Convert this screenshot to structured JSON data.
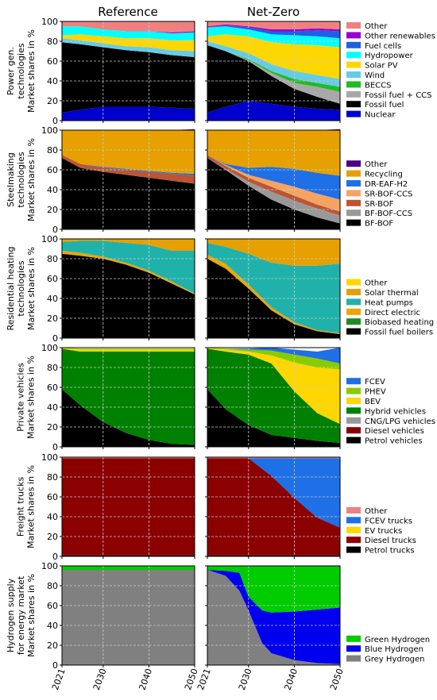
{
  "columns": [
    "Reference",
    "Net-Zero"
  ],
  "x_ticks": [
    2021,
    2030,
    2040,
    2050
  ],
  "y_ticks": [
    0,
    20,
    40,
    60,
    80,
    100
  ],
  "chart_data": [
    {
      "type": "area",
      "ylabel": [
        "Power gen.",
        "technologies",
        "Market shares in %"
      ],
      "ylim": [
        0,
        100
      ],
      "x": [
        2021,
        2025,
        2030,
        2035,
        2040,
        2045,
        2050
      ],
      "legend": [
        "Other",
        "Other renewables",
        "Fuel cells",
        "Hydropower",
        "Solar PV",
        "Wind",
        "BECCS",
        "Fossil fuel + CCS",
        "Fossil fuel",
        "Nuclear"
      ],
      "series": [
        {
          "name": "Nuclear",
          "color": "#0000cc",
          "reference": [
            8,
            11,
            14,
            14,
            14,
            13,
            12
          ],
          "netzero": [
            8,
            14,
            20,
            17,
            14,
            12,
            11
          ]
        },
        {
          "name": "Fossil fuel",
          "color": "#000000",
          "reference": [
            71,
            66,
            60,
            57,
            55,
            53,
            52
          ],
          "netzero": [
            68,
            56,
            40,
            28,
            18,
            12,
            6
          ]
        },
        {
          "name": "Fossil fuel + CCS",
          "color": "#a8a8a8",
          "reference": [
            0,
            0,
            0,
            0,
            0,
            0,
            0
          ],
          "netzero": [
            0,
            0,
            1,
            3,
            6,
            10,
            12
          ]
        },
        {
          "name": "BECCS",
          "color": "#22bb22",
          "reference": [
            0,
            0,
            0,
            0,
            0,
            0,
            0
          ],
          "netzero": [
            0,
            0,
            1,
            2,
            4,
            4,
            5
          ]
        },
        {
          "name": "Wind",
          "color": "#66cce6",
          "reference": [
            4,
            4,
            4,
            4,
            5,
            5,
            6
          ],
          "netzero": [
            4,
            5,
            6,
            7,
            8,
            8,
            8
          ]
        },
        {
          "name": "Solar PV",
          "color": "#ffd700",
          "reference": [
            3,
            6,
            7,
            8,
            9,
            10,
            11
          ],
          "netzero": [
            5,
            12,
            17,
            22,
            27,
            30,
            32
          ]
        },
        {
          "name": "Hydropower",
          "color": "#00ffff",
          "reference": [
            9,
            8,
            7,
            7,
            7,
            7,
            8
          ],
          "netzero": [
            9,
            8,
            7,
            8,
            9,
            9,
            9
          ]
        },
        {
          "name": "Fuel cells",
          "color": "#1f5fe6",
          "reference": [
            0,
            0,
            0,
            0,
            0,
            0,
            0
          ],
          "netzero": [
            0,
            1,
            2,
            3,
            4,
            6,
            7
          ]
        },
        {
          "name": "Other renewables",
          "color": "#9900cc",
          "reference": [
            0,
            0,
            0,
            0,
            0,
            1,
            1
          ],
          "netzero": [
            1,
            1,
            1,
            2,
            2,
            2,
            2
          ]
        },
        {
          "name": "Other",
          "color": "#f08080",
          "reference": [
            5,
            5,
            8,
            10,
            10,
            11,
            10
          ],
          "netzero": [
            5,
            3,
            5,
            8,
            8,
            7,
            8
          ]
        }
      ]
    },
    {
      "type": "area",
      "ylabel": [
        "Steelmaking",
        "technologies",
        "Market shares in %"
      ],
      "ylim": [
        0,
        100
      ],
      "x": [
        2021,
        2025,
        2030,
        2035,
        2040,
        2045,
        2050
      ],
      "legend": [
        "Other",
        "Recycling",
        "DR-EAF-H2",
        "SR-BOF-CCS",
        "SR-BOF",
        "BF-BOF-CCS",
        "BF-BOF"
      ],
      "series": [
        {
          "name": "BF-BOF",
          "color": "#000000",
          "reference": [
            72,
            62,
            58,
            55,
            52,
            49,
            46
          ],
          "netzero": [
            72,
            60,
            44,
            30,
            20,
            12,
            6
          ]
        },
        {
          "name": "BF-BOF-CCS",
          "color": "#999999",
          "reference": [
            0,
            0,
            0,
            0,
            0,
            0,
            0
          ],
          "netzero": [
            0,
            1,
            4,
            8,
            9,
            9,
            8
          ]
        },
        {
          "name": "SR-BOF",
          "color": "#bb5533",
          "reference": [
            3,
            4,
            4,
            5,
            6,
            7,
            8
          ],
          "netzero": [
            3,
            3,
            4,
            5,
            5,
            4,
            4
          ]
        },
        {
          "name": "SR-BOF-CCS",
          "color": "#f4a460",
          "reference": [
            0,
            0,
            0,
            0,
            0,
            0,
            0
          ],
          "netzero": [
            0,
            1,
            3,
            6,
            9,
            11,
            12
          ]
        },
        {
          "name": "DR-EAF-H2",
          "color": "#1f6fe6",
          "reference": [
            0,
            0,
            1,
            1,
            1,
            1,
            2
          ],
          "netzero": [
            0,
            1,
            7,
            14,
            18,
            21,
            24
          ]
        },
        {
          "name": "Recycling",
          "color": "#e6a000",
          "reference": [
            25,
            34,
            37,
            39,
            41,
            43,
            44
          ],
          "netzero": [
            25,
            34,
            38,
            37,
            39,
            43,
            46
          ]
        },
        {
          "name": "Other",
          "color": "#4b0082",
          "reference": [
            0,
            0,
            0,
            0,
            0,
            0,
            1
          ],
          "netzero": [
            0,
            0,
            0,
            0,
            0,
            0,
            1
          ]
        }
      ]
    },
    {
      "type": "area",
      "ylabel": [
        "Residential heating",
        "technologies",
        "Market shares in %"
      ],
      "ylim": [
        0,
        100
      ],
      "x": [
        2021,
        2025,
        2030,
        2035,
        2040,
        2045,
        2050
      ],
      "legend": [
        "Other",
        "Solar thermal",
        "Heat pumps",
        "Direct electric",
        "Biobased heating",
        "Fossil fuel boilers"
      ],
      "series": [
        {
          "name": "Fossil fuel boilers",
          "color": "#000000",
          "reference": [
            85,
            83,
            80,
            74,
            66,
            55,
            44
          ],
          "netzero": [
            80,
            70,
            50,
            28,
            14,
            7,
            4
          ]
        },
        {
          "name": "Biobased heating",
          "color": "#228b22",
          "reference": [
            0,
            0,
            0,
            0,
            0,
            0,
            0
          ],
          "netzero": [
            0,
            0,
            0,
            0,
            0,
            0,
            0
          ]
        },
        {
          "name": "Direct electric",
          "color": "#f0a500",
          "reference": [
            3,
            3,
            2,
            2,
            2,
            2,
            1
          ],
          "netzero": [
            4,
            5,
            4,
            3,
            2,
            1,
            1
          ]
        },
        {
          "name": "Heat pumps",
          "color": "#20b2aa",
          "reference": [
            9,
            12,
            16,
            20,
            26,
            31,
            43
          ],
          "netzero": [
            12,
            17,
            31,
            45,
            57,
            65,
            70
          ]
        },
        {
          "name": "Solar thermal",
          "color": "#e6a000",
          "reference": [
            3,
            2,
            2,
            4,
            6,
            12,
            12
          ],
          "netzero": [
            4,
            8,
            15,
            24,
            27,
            27,
            25
          ]
        },
        {
          "name": "Other",
          "color": "#ffd700",
          "reference": [
            0,
            0,
            0,
            0,
            0,
            0,
            0
          ],
          "netzero": [
            0,
            0,
            0,
            0,
            0,
            0,
            0
          ]
        }
      ]
    },
    {
      "type": "area",
      "ylabel": [
        "Private vehicles",
        "Market shares in %"
      ],
      "ylim": [
        0,
        100
      ],
      "x": [
        2021,
        2025,
        2030,
        2035,
        2040,
        2045,
        2050
      ],
      "legend": [
        "FCEV",
        "PHEV",
        "BEV",
        "Hybrid vehicles",
        "CNG/LPG vehicles",
        "Diesel vehicles",
        "Petrol vehicles"
      ],
      "series": [
        {
          "name": "Petrol vehicles",
          "color": "#000000",
          "reference": [
            58,
            42,
            25,
            14,
            7,
            3,
            2
          ],
          "netzero": [
            58,
            38,
            22,
            12,
            9,
            6,
            4
          ]
        },
        {
          "name": "Diesel vehicles",
          "color": "#8b0000",
          "reference": [
            0,
            0,
            0,
            0,
            0,
            0,
            0
          ],
          "netzero": [
            0,
            0,
            0,
            0,
            0,
            0,
            0
          ]
        },
        {
          "name": "CNG/LPG vehicles",
          "color": "#999999",
          "reference": [
            0,
            0,
            0,
            0,
            0,
            0,
            0
          ],
          "netzero": [
            0,
            0,
            0,
            0,
            0,
            0,
            0
          ]
        },
        {
          "name": "Hybrid vehicles",
          "color": "#008000",
          "reference": [
            41,
            54,
            71,
            82,
            89,
            93,
            94
          ],
          "netzero": [
            41,
            58,
            71,
            72,
            47,
            28,
            19
          ]
        },
        {
          "name": "BEV",
          "color": "#ffd700",
          "reference": [
            1,
            2,
            2,
            2,
            2,
            2,
            2
          ],
          "netzero": [
            1,
            2,
            3,
            8,
            29,
            46,
            55
          ]
        },
        {
          "name": "PHEV",
          "color": "#88cc00",
          "reference": [
            0,
            1,
            1,
            1,
            1,
            1,
            1
          ],
          "netzero": [
            0,
            1,
            2,
            5,
            8,
            9,
            6
          ]
        },
        {
          "name": "FCEV",
          "color": "#1f6fe6",
          "reference": [
            0,
            0,
            0,
            0,
            0,
            0,
            0
          ],
          "netzero": [
            0,
            0,
            1,
            3,
            5,
            7,
            16
          ]
        }
      ]
    },
    {
      "type": "area",
      "ylabel": [
        "Freight trucks",
        "Market shares in %"
      ],
      "ylim": [
        0,
        100
      ],
      "x": [
        2021,
        2025,
        2030,
        2035,
        2040,
        2045,
        2050
      ],
      "legend": [
        "Other",
        "FCEV trucks",
        "EV trucks",
        "Diesel trucks",
        "Petrol trucks"
      ],
      "series": [
        {
          "name": "Petrol trucks",
          "color": "#000000",
          "reference": [
            1,
            1,
            1,
            1,
            1,
            1,
            1
          ],
          "netzero": [
            1,
            1,
            1,
            1,
            1,
            1,
            1
          ]
        },
        {
          "name": "Diesel trucks",
          "color": "#8b0000",
          "reference": [
            98,
            98,
            98,
            98,
            98,
            98,
            98
          ],
          "netzero": [
            98,
            98,
            98,
            80,
            58,
            38,
            28
          ]
        },
        {
          "name": "EV trucks",
          "color": "#ffd700",
          "reference": [
            0,
            0,
            0,
            0,
            0,
            0,
            0
          ],
          "netzero": [
            0,
            0,
            0,
            0,
            0,
            0,
            0
          ]
        },
        {
          "name": "FCEV trucks",
          "color": "#1f6fe6",
          "reference": [
            0,
            0,
            0,
            0,
            0,
            0,
            0
          ],
          "netzero": [
            0,
            0,
            0,
            18,
            40,
            60,
            70
          ]
        },
        {
          "name": "Other",
          "color": "#f08080",
          "reference": [
            1,
            1,
            1,
            1,
            1,
            1,
            1
          ],
          "netzero": [
            1,
            1,
            1,
            1,
            1,
            1,
            1
          ]
        }
      ]
    },
    {
      "type": "area",
      "ylabel": [
        "Hydrogen supply",
        "for energy market",
        "Market shares in %"
      ],
      "ylim": [
        0,
        100
      ],
      "x": [
        2021,
        2025,
        2028,
        2030,
        2033,
        2035,
        2040,
        2045,
        2050
      ],
      "legend": [
        "Green Hydrogen",
        "Blue Hydrogen",
        "Grey Hydrogen"
      ],
      "series": [
        {
          "name": "Grey Hydrogen",
          "color": "#808080",
          "reference": [
            96,
            96,
            96,
            96,
            96,
            96,
            96,
            96,
            96
          ],
          "netzero": [
            96,
            90,
            75,
            55,
            22,
            12,
            5,
            2,
            1
          ]
        },
        {
          "name": "Blue Hydrogen",
          "color": "#0000ee",
          "reference": [
            0,
            0,
            0,
            0,
            0,
            0,
            0,
            0,
            0
          ],
          "netzero": [
            0,
            5,
            18,
            14,
            33,
            41,
            49,
            54,
            57
          ]
        },
        {
          "name": "Green Hydrogen",
          "color": "#00cc00",
          "reference": [
            4,
            4,
            4,
            4,
            4,
            4,
            4,
            4,
            4
          ],
          "netzero": [
            4,
            5,
            7,
            31,
            45,
            47,
            46,
            44,
            42
          ]
        }
      ]
    }
  ]
}
